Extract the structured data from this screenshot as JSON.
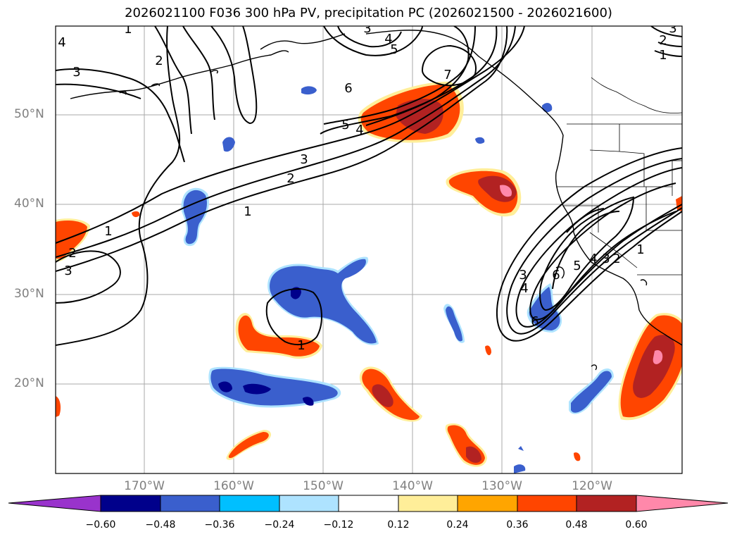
{
  "title": "2026021100 F036 300 hPa PV, precipitation PC (2026021500 - 2026021600)",
  "latitude_labels": [
    "50°N",
    "40°N",
    "30°N",
    "20°N"
  ],
  "longitude_labels": [
    "170°W",
    "160°W",
    "150°W",
    "140°W",
    "130°W",
    "120°W"
  ],
  "colorbar": {
    "tick_labels": [
      "−0.60",
      "−0.48",
      "−0.36",
      "−0.24",
      "−0.12",
      "0.12",
      "0.24",
      "0.36",
      "0.48",
      "0.60"
    ],
    "colors": [
      "#9933cc",
      "#00008b",
      "#3a5fcd",
      "#00bfff",
      "#aee3ff",
      "#ffffff",
      "#ffee99",
      "#ffa500",
      "#ff4500",
      "#b22222",
      "#ff88aa"
    ]
  },
  "pv_contour_labels": [
    "1",
    "2",
    "3",
    "4",
    "5",
    "6",
    "7"
  ],
  "fill_colors": {
    "pos_low": "#ffee99",
    "pos_mid": "#ffa500",
    "pos_high": "#ff4500",
    "pos_very_high": "#b22222",
    "pos_extreme": "#ff88aa",
    "neg_low": "#aee3ff",
    "neg_mid": "#00bfff",
    "neg_high": "#3a5fcd",
    "neg_very_high": "#00008b"
  }
}
